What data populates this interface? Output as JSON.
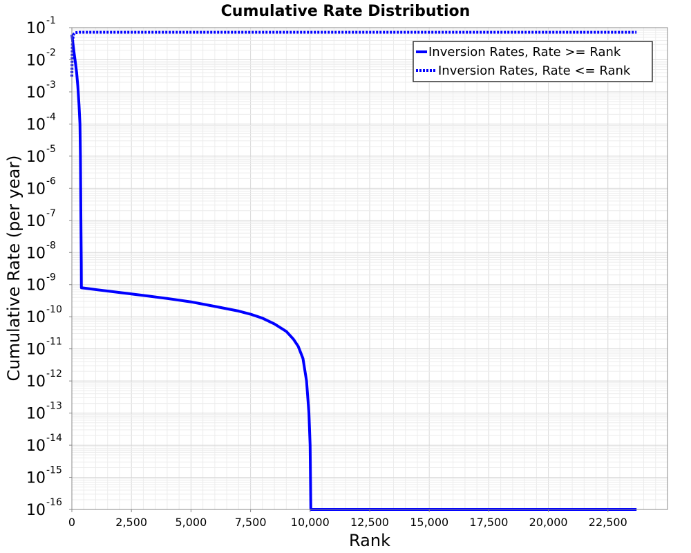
{
  "chart_data": {
    "type": "line",
    "title": "Cumulative Rate Distribution",
    "xlabel": "Rank",
    "ylabel": "Cumulative Rate (per year)",
    "xlim": [
      0,
      25000
    ],
    "ylim": [
      1e-16,
      0.1
    ],
    "yscale": "log",
    "grid": true,
    "legend_placement": "top-right",
    "x_ticks": [
      0,
      2500,
      5000,
      7500,
      10000,
      12500,
      15000,
      17500,
      20000,
      22500
    ],
    "x_tick_labels": [
      "0",
      "2,500",
      "5,000",
      "7,500",
      "10,000",
      "12,500",
      "15,000",
      "17,500",
      "20,000",
      "22,500"
    ],
    "y_tick_exponents": [
      "-1",
      "-2",
      "-3",
      "-4",
      "-5",
      "-6",
      "-7",
      "-8",
      "-9",
      "-10",
      "-11",
      "-12",
      "-13",
      "-14",
      "-15",
      "-16"
    ],
    "y_tick_base": "10",
    "series": [
      {
        "name": "Inversion Rates, Rate >= Rank",
        "style": "solid",
        "color": "#0000ff",
        "points": [
          [
            0,
            0.06
          ],
          [
            50,
            0.03
          ],
          [
            100,
            0.015
          ],
          [
            150,
            0.008
          ],
          [
            200,
            0.004
          ],
          [
            250,
            0.0015
          ],
          [
            300,
            0.0004
          ],
          [
            340,
            0.0001
          ],
          [
            360,
            1e-05
          ],
          [
            380,
            1e-07
          ],
          [
            395,
            5e-09
          ],
          [
            400,
            8e-10
          ],
          [
            1000,
            7e-10
          ],
          [
            2000,
            5.7e-10
          ],
          [
            3000,
            4.6e-10
          ],
          [
            4000,
            3.7e-10
          ],
          [
            5000,
            2.9e-10
          ],
          [
            6000,
            2.1e-10
          ],
          [
            7000,
            1.5e-10
          ],
          [
            7500,
            1.2e-10
          ],
          [
            8000,
            9e-11
          ],
          [
            8500,
            6e-11
          ],
          [
            9000,
            3.5e-11
          ],
          [
            9300,
            2e-11
          ],
          [
            9500,
            1.2e-11
          ],
          [
            9700,
            5e-12
          ],
          [
            9850,
            1e-12
          ],
          [
            9950,
            1e-13
          ],
          [
            10000,
            1e-14
          ],
          [
            10030,
            1e-16
          ],
          [
            23700,
            1e-16
          ]
        ]
      },
      {
        "name": "Inversion Rates, Rate <= Rank",
        "style": "dotted",
        "color": "#0000ff",
        "points": [
          [
            0,
            0.003
          ],
          [
            20,
            0.03
          ],
          [
            60,
            0.06
          ],
          [
            150,
            0.07
          ],
          [
            300,
            0.072
          ],
          [
            23700,
            0.072
          ]
        ]
      }
    ]
  }
}
